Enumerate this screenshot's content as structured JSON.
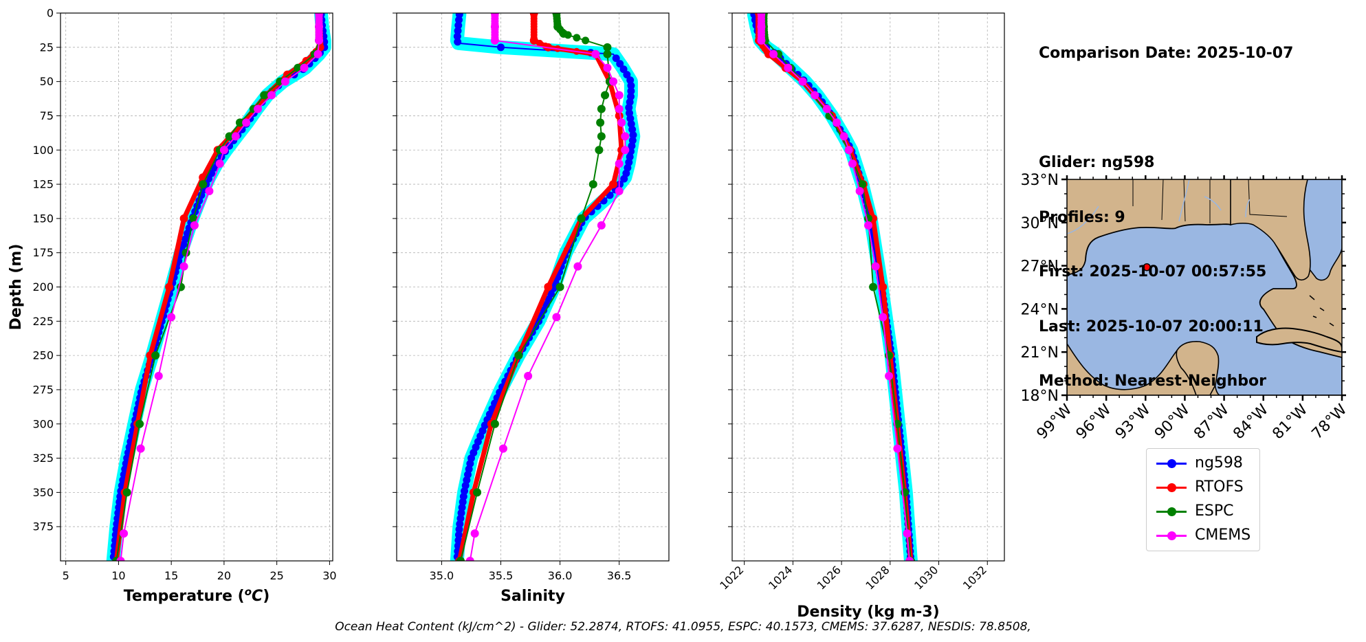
{
  "info": {
    "lines": [
      "Comparison Date: 2025-10-07",
      "",
      "Glider: ng598",
      "Profiles: 9",
      "First: 2025-10-07 00:57:55",
      "Last: 2025-10-07 20:00:11",
      "Method: Nearest-Neighbor"
    ]
  },
  "footer": "Ocean Heat Content (kJ/cm^2) - Glider: 52.2874,  RTOFS: 41.0955,  ESPC: 40.1573,  CMEMS: 37.6287,  NESDIS: 78.8508,",
  "colors": {
    "ng598": "#0000ff",
    "ng598_band": "#00ffff",
    "RTOFS": "#ff0000",
    "ESPC": "#008000",
    "CMEMS": "#ff00ff",
    "land": "#d2b48c",
    "ocean": "#9ab7e2"
  },
  "legend": [
    {
      "name": "ng598",
      "color": "#0000ff"
    },
    {
      "name": "RTOFS",
      "color": "#ff0000"
    },
    {
      "name": "ESPC",
      "color": "#008000"
    },
    {
      "name": "CMEMS",
      "color": "#ff00ff"
    }
  ],
  "chart_data": [
    {
      "type": "line",
      "xlabel": "Temperature ($^oC$)",
      "ylabel": "Depth (m)",
      "xlim": [
        4.5,
        30.3
      ],
      "ylim": [
        400,
        0
      ],
      "xticks": [
        5,
        10,
        15,
        20,
        25,
        30
      ],
      "yticks": [
        0,
        25,
        50,
        75,
        100,
        125,
        150,
        175,
        200,
        225,
        250,
        275,
        300,
        325,
        350,
        375
      ],
      "grid": true,
      "series": [
        {
          "name": "ng598",
          "style": "glider",
          "depth": [
            1,
            10,
            20,
            25,
            30,
            40,
            50,
            60,
            70,
            80,
            90,
            100,
            110,
            120,
            130,
            150,
            175,
            200,
            225,
            250,
            275,
            300,
            325,
            350,
            375,
            400
          ],
          "values": [
            29.2,
            29.3,
            29.5,
            29.5,
            29.0,
            27.7,
            25.6,
            24.1,
            23.1,
            22.2,
            21.2,
            20.2,
            19.3,
            18.6,
            18.0,
            17.0,
            15.9,
            15.0,
            14.1,
            13.2,
            12.2,
            11.5,
            10.8,
            10.2,
            9.8,
            9.5
          ]
        },
        {
          "name": "RTOFS",
          "style": "thick",
          "depth": [
            0,
            25,
            35,
            45,
            60,
            80,
            100,
            120,
            150,
            200,
            250,
            300,
            350,
            400
          ],
          "values": [
            29.0,
            29.1,
            27.8,
            26.0,
            24.0,
            21.8,
            19.4,
            18.0,
            16.2,
            14.8,
            13.0,
            11.8,
            10.6,
            9.8
          ]
        },
        {
          "name": "ESPC",
          "style": "marker",
          "depth": [
            0,
            10,
            20,
            30,
            40,
            50,
            60,
            70,
            80,
            90,
            100,
            125,
            150,
            175,
            200,
            250,
            300,
            350,
            400
          ],
          "values": [
            29.0,
            29.0,
            29.0,
            28.6,
            27.0,
            25.3,
            23.8,
            22.8,
            21.5,
            20.5,
            19.6,
            18.0,
            17.1,
            16.4,
            15.9,
            13.5,
            12.0,
            10.8,
            9.8
          ]
        },
        {
          "name": "CMEMS",
          "style": "marker",
          "depth": [
            0,
            10,
            20,
            30,
            40,
            50,
            60,
            70,
            80,
            90,
            100,
            110,
            130,
            155,
            185,
            222,
            265,
            318,
            380,
            400
          ],
          "values": [
            29.0,
            29.0,
            29.0,
            28.9,
            27.6,
            25.8,
            24.5,
            23.2,
            22.1,
            21.1,
            20.0,
            19.6,
            18.6,
            17.2,
            16.2,
            15.0,
            13.8,
            12.1,
            10.5,
            10.2
          ]
        }
      ]
    },
    {
      "type": "line",
      "xlabel": "Salinity",
      "ylabel": "",
      "xlim": [
        34.62,
        36.92
      ],
      "ylim": [
        400,
        0
      ],
      "xticks": [
        35.0,
        35.5,
        36.0,
        36.5
      ],
      "xticklabels": [
        "35.0",
        "35.5",
        "36.0",
        "36.5"
      ],
      "yticks": [
        0,
        25,
        50,
        75,
        100,
        125,
        150,
        175,
        200,
        225,
        250,
        275,
        300,
        325,
        350,
        375
      ],
      "grid": true,
      "series": [
        {
          "name": "ng598",
          "style": "glider",
          "depth": [
            1,
            10,
            20,
            22,
            25,
            30,
            40,
            50,
            60,
            70,
            80,
            90,
            100,
            110,
            120,
            130,
            150,
            175,
            200,
            225,
            250,
            275,
            300,
            325,
            350,
            375,
            400
          ],
          "values": [
            35.15,
            35.14,
            35.13,
            35.14,
            35.5,
            36.45,
            36.53,
            36.6,
            36.6,
            36.58,
            36.6,
            36.62,
            36.6,
            36.58,
            36.55,
            36.46,
            36.2,
            36.05,
            35.95,
            35.82,
            35.65,
            35.5,
            35.37,
            35.25,
            35.19,
            35.15,
            35.13
          ]
        },
        {
          "name": "RTOFS",
          "style": "thick",
          "depth": [
            0,
            20,
            25,
            30,
            50,
            75,
            100,
            125,
            150,
            200,
            250,
            300,
            350,
            400
          ],
          "values": [
            35.78,
            35.78,
            35.9,
            36.3,
            36.42,
            36.5,
            36.52,
            36.45,
            36.18,
            35.9,
            35.65,
            35.42,
            35.27,
            35.15
          ]
        },
        {
          "name": "ESPC",
          "style": "marker",
          "depth": [
            0,
            10,
            15,
            25,
            30,
            50,
            60,
            70,
            80,
            90,
            100,
            125,
            150,
            200,
            250,
            300,
            350,
            400
          ],
          "values": [
            35.97,
            35.98,
            36.03,
            36.4,
            36.4,
            36.42,
            36.38,
            36.35,
            36.34,
            36.35,
            36.33,
            36.28,
            36.18,
            36.0,
            35.65,
            35.45,
            35.3,
            35.16
          ]
        },
        {
          "name": "CMEMS",
          "style": "marker",
          "depth": [
            0,
            10,
            20,
            30,
            40,
            50,
            60,
            70,
            80,
            90,
            100,
            110,
            130,
            155,
            185,
            222,
            265,
            318,
            380,
            400
          ],
          "values": [
            35.45,
            35.45,
            35.45,
            36.3,
            36.4,
            36.45,
            36.5,
            36.5,
            36.52,
            36.55,
            36.55,
            36.5,
            36.5,
            36.35,
            36.15,
            35.97,
            35.73,
            35.52,
            35.28,
            35.24
          ]
        }
      ]
    },
    {
      "type": "line",
      "xlabel": "Density (kg m-3)",
      "ylabel": "",
      "xlim": [
        1021.5,
        1032.7
      ],
      "ylim": [
        400,
        0
      ],
      "xticks": [
        1022,
        1024,
        1026,
        1028,
        1030,
        1032
      ],
      "yticks": [
        0,
        25,
        50,
        75,
        100,
        125,
        150,
        175,
        200,
        225,
        250,
        275,
        300,
        325,
        350,
        375
      ],
      "grid": true,
      "series": [
        {
          "name": "ng598",
          "style": "glider",
          "depth": [
            1,
            10,
            20,
            25,
            30,
            40,
            50,
            60,
            75,
            90,
            100,
            125,
            150,
            200,
            250,
            300,
            350,
            400
          ],
          "values": [
            1022.4,
            1022.5,
            1022.65,
            1022.9,
            1023.3,
            1023.9,
            1024.5,
            1025.0,
            1025.6,
            1026.1,
            1026.4,
            1026.85,
            1027.2,
            1027.65,
            1028.05,
            1028.35,
            1028.65,
            1028.85
          ]
        },
        {
          "name": "RTOFS",
          "style": "thick",
          "depth": [
            0,
            20,
            30,
            40,
            50,
            75,
            100,
            125,
            150,
            200,
            250,
            300,
            350,
            400
          ],
          "values": [
            1022.6,
            1022.6,
            1023.0,
            1023.7,
            1024.4,
            1025.6,
            1026.35,
            1026.9,
            1027.3,
            1027.7,
            1028.0,
            1028.3,
            1028.6,
            1028.85
          ]
        },
        {
          "name": "ESPC",
          "style": "marker",
          "depth": [
            0,
            10,
            20,
            30,
            40,
            50,
            75,
            100,
            125,
            150,
            200,
            250,
            300,
            350,
            400
          ],
          "values": [
            1022.8,
            1022.8,
            1022.85,
            1023.4,
            1023.9,
            1024.4,
            1025.5,
            1026.3,
            1026.85,
            1027.1,
            1027.3,
            1027.95,
            1028.3,
            1028.6,
            1028.85
          ]
        },
        {
          "name": "CMEMS",
          "style": "marker",
          "depth": [
            0,
            10,
            20,
            30,
            40,
            50,
            60,
            70,
            80,
            90,
            100,
            110,
            130,
            155,
            185,
            222,
            265,
            318,
            380,
            400
          ],
          "values": [
            1022.7,
            1022.7,
            1022.7,
            1023.2,
            1023.8,
            1024.4,
            1024.9,
            1025.4,
            1025.8,
            1026.1,
            1026.3,
            1026.45,
            1026.75,
            1027.1,
            1027.4,
            1027.7,
            1027.95,
            1028.3,
            1028.7,
            1028.8
          ]
        }
      ]
    },
    {
      "type": "map",
      "lon": [
        -99,
        -78
      ],
      "lat": [
        18,
        33
      ],
      "lon_ticks": [
        "99°W",
        "96°W",
        "93°W",
        "90°W",
        "87°W",
        "84°W",
        "81°W",
        "78°W"
      ],
      "lat_ticks": [
        "18°N",
        "21°N",
        "24°N",
        "27°N",
        "30°N",
        "33°N"
      ],
      "glider_position": {
        "lon": -92.9,
        "lat": 26.9
      }
    }
  ]
}
